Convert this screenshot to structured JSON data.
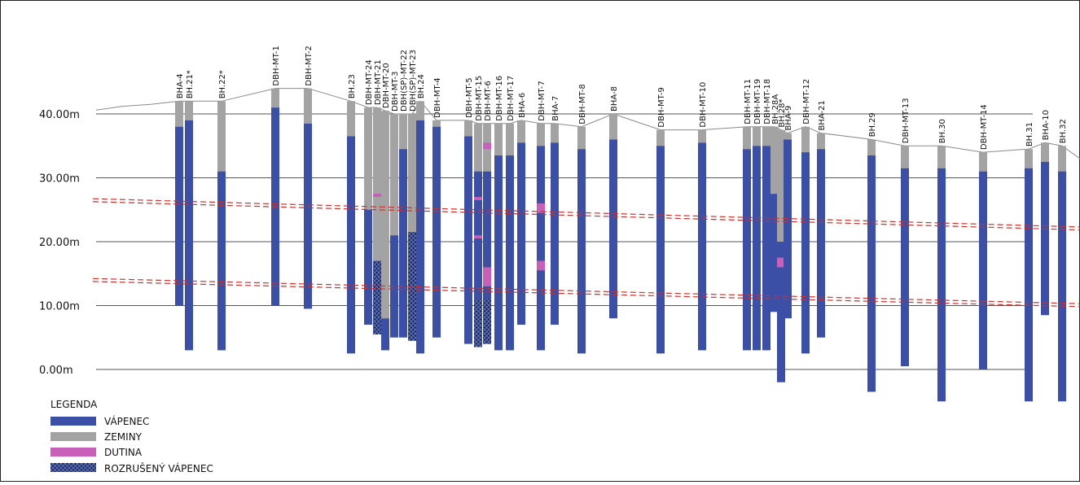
{
  "y_axis": {
    "ticks": [
      {
        "value": 40,
        "label": "40.00m"
      },
      {
        "value": 30,
        "label": "30.00m"
      },
      {
        "value": 20,
        "label": "20.00m"
      },
      {
        "value": 10,
        "label": "10.00m"
      },
      {
        "value": 0,
        "label": "0.00m"
      }
    ]
  },
  "colors": {
    "limestone": "#3a4fa5",
    "soil": "#a3a3a3",
    "cavity": "#c85fb8",
    "disturbed": "#1e2a62",
    "grid": "#555555",
    "terrain": "#8a8a8a",
    "fault": "#d0302a"
  },
  "legend": {
    "title": "LEGENDA",
    "items": [
      {
        "key": "limestone",
        "label": "VÁPENEC"
      },
      {
        "key": "soil",
        "label": "ZEMINY"
      },
      {
        "key": "cavity",
        "label": "DUTINA"
      },
      {
        "key": "disturbed",
        "label": "ROZRUŠENÝ VÁPENEC"
      }
    ]
  },
  "boreholes": [
    {
      "name": "BHA-4",
      "top": 42,
      "bottom": 10,
      "soil_bottom": 38
    },
    {
      "name": "BH.21*",
      "top": 42,
      "bottom": 3,
      "soil_bottom": 39
    },
    {
      "name": "BH.22*",
      "top": 42,
      "bottom": 3,
      "soil_bottom": 31
    },
    {
      "name": "DBH-MT-1",
      "top": 44,
      "bottom": 10,
      "soil_bottom": 41
    },
    {
      "name": "DBH-MT-2",
      "top": 44,
      "bottom": 9.5,
      "soil_bottom": 38.5
    },
    {
      "name": "BH.23",
      "top": 42,
      "bottom": 2.5,
      "soil_bottom": 36.5
    },
    {
      "name": "DBH-MT-24",
      "top": 41,
      "bottom": 7,
      "soil_bottom": 25
    },
    {
      "name": "DBH-MT-21",
      "top": 41,
      "bottom": 5.5,
      "soil_bottom": 17,
      "disturbed": [
        17,
        5.5
      ],
      "cavities": [
        [
          27.5,
          27
        ]
      ]
    },
    {
      "name": "DBH-MT-20",
      "top": 40.5,
      "bottom": 3,
      "soil_bottom": 8
    },
    {
      "name": "DBH-MT-3",
      "top": 40,
      "bottom": 5,
      "soil_bottom": 21
    },
    {
      "name": "DBH(SP)-MT-22",
      "top": 40,
      "bottom": 5,
      "soil_bottom": 34.5
    },
    {
      "name": "DBH(SP)-MT-23",
      "top": 40,
      "bottom": 4.5,
      "soil_bottom": 21.5,
      "disturbed": [
        21.5,
        4.5
      ]
    },
    {
      "name": "BH.24",
      "top": 42,
      "bottom": 2.5,
      "soil_bottom": 39
    },
    {
      "name": "DBH-MT-4",
      "top": 39,
      "bottom": 5,
      "soil_bottom": 38
    },
    {
      "name": "DBH-MT-5",
      "top": 39,
      "bottom": 4,
      "soil_bottom": 36.5
    },
    {
      "name": "DBH-MT-15",
      "top": 38.5,
      "bottom": 3.5,
      "soil_bottom": 31,
      "disturbed": [
        11,
        3.5
      ],
      "cavities": [
        [
          27,
          26.5
        ],
        [
          21,
          20.5
        ]
      ]
    },
    {
      "name": "DBH-MT-6",
      "top": 38.5,
      "bottom": 4,
      "soil_bottom": 31,
      "disturbed": [
        11,
        4
      ],
      "cavities": [
        [
          16,
          13
        ],
        [
          35.5,
          34.5
        ]
      ]
    },
    {
      "name": "DBH-MT-16",
      "top": 38.5,
      "bottom": 3,
      "soil_bottom": 33.5
    },
    {
      "name": "DBH-MT-17",
      "top": 38.5,
      "bottom": 3,
      "soil_bottom": 33.5
    },
    {
      "name": "BHA-6",
      "top": 39,
      "bottom": 7,
      "soil_bottom": 35.5
    },
    {
      "name": "DBH-MT-7",
      "top": 38.5,
      "bottom": 3,
      "soil_bottom": 35,
      "cavities": [
        [
          26,
          24.5
        ],
        [
          17,
          15.5
        ]
      ]
    },
    {
      "name": "BHA-7",
      "top": 38.5,
      "bottom": 7,
      "soil_bottom": 35.5
    },
    {
      "name": "DBH-MT-8",
      "top": 38,
      "bottom": 2.5,
      "soil_bottom": 34.5
    },
    {
      "name": "BHA-8",
      "top": 40,
      "bottom": 8,
      "soil_bottom": 36
    },
    {
      "name": "DBH-MT-9",
      "top": 37.5,
      "bottom": 2.5,
      "soil_bottom": 35
    },
    {
      "name": "DBH-MT-10",
      "top": 37.5,
      "bottom": 3,
      "soil_bottom": 35.5
    },
    {
      "name": "DBH-MT-11",
      "top": 38,
      "bottom": 3,
      "soil_bottom": 34.5
    },
    {
      "name": "DBH-MT-19",
      "top": 38,
      "bottom": 3,
      "soil_bottom": 35
    },
    {
      "name": "DBH-MT-18",
      "top": 38,
      "bottom": 3,
      "soil_bottom": 35
    },
    {
      "name": "BH.28A",
      "top": 38,
      "bottom": 9,
      "soil_bottom": 27.5
    },
    {
      "name": "BH.28*",
      "top": 37.5,
      "bottom": -2,
      "soil_bottom": 20,
      "cavities": [
        [
          17.5,
          16
        ]
      ]
    },
    {
      "name": "BHA-9",
      "top": 37,
      "bottom": 8,
      "soil_bottom": 36
    },
    {
      "name": "DBH-MT-12",
      "top": 38,
      "bottom": 2.5,
      "soil_bottom": 34
    },
    {
      "name": "BHA-21",
      "top": 37,
      "bottom": 5,
      "soil_bottom": 34.5
    },
    {
      "name": "BH.29",
      "top": 36,
      "bottom": -3.5,
      "soil_bottom": 33.5
    },
    {
      "name": "DBH-MT-13",
      "top": 35,
      "bottom": 0.5,
      "soil_bottom": 31.5
    },
    {
      "name": "BH.30",
      "top": 35,
      "bottom": -5,
      "soil_bottom": 31.5
    },
    {
      "name": "DBH-MT-14",
      "top": 34,
      "bottom": 0,
      "soil_bottom": 31
    },
    {
      "name": "BH.31",
      "top": 34.5,
      "bottom": -5,
      "soil_bottom": 31.5
    },
    {
      "name": "BHA-10",
      "top": 35.5,
      "bottom": 8.5,
      "soil_bottom": 32.5
    },
    {
      "name": "BH.32",
      "top": 35,
      "bottom": -5,
      "soil_bottom": 31
    }
  ],
  "faults": [
    {
      "from": [
        -50,
        26.5
      ],
      "to": [
        560,
        22
      ]
    },
    {
      "from": [
        -50,
        14
      ],
      "to": [
        560,
        10
      ]
    }
  ]
}
